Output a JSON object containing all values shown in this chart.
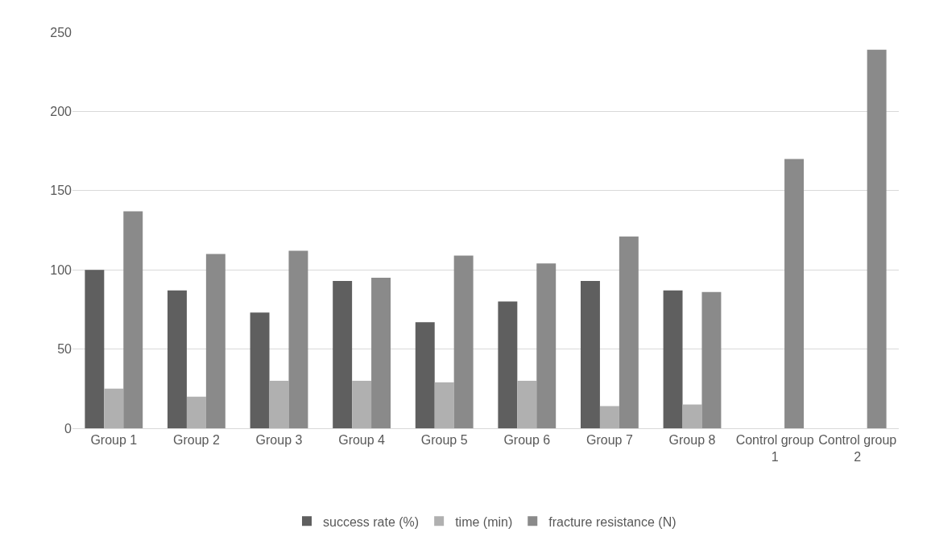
{
  "chart_data": {
    "type": "bar",
    "categories": [
      "Group 1",
      "Group 2",
      "Group 3",
      "Group 4",
      "Group 5",
      "Group 6",
      "Group 7",
      "Group 8",
      "Control group 1",
      "Control group 2"
    ],
    "series": [
      {
        "name": "success rate (%)",
        "color": "#5f5f5f",
        "values": [
          100,
          87,
          73,
          93,
          67,
          80,
          93,
          87,
          null,
          null
        ]
      },
      {
        "name": "time (min)",
        "color": "#b0b0b0",
        "values": [
          25,
          20,
          30,
          30,
          29,
          30,
          14,
          15,
          null,
          null
        ]
      },
      {
        "name": "fracture resistance (N)",
        "color": "#8a8a8a",
        "values": [
          137,
          110,
          112,
          95,
          109,
          104,
          121,
          86,
          170,
          239
        ]
      }
    ],
    "ylim": [
      0,
      250
    ],
    "yticks": [
      0,
      50,
      100,
      150,
      200,
      250
    ],
    "grid": "y",
    "legend": "bottom"
  }
}
